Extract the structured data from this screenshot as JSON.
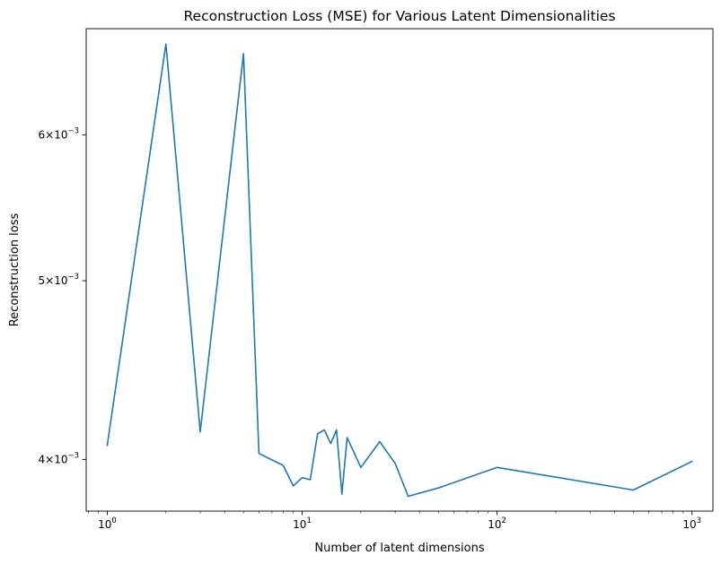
{
  "chart_data": {
    "type": "line",
    "title": "Reconstruction Loss (MSE) for Various Latent Dimensionalities",
    "xlabel": "Number of latent dimensions",
    "ylabel": "Reconstruction loss",
    "xscale": "log",
    "yscale": "log",
    "xlim": [
      0.78,
      1280
    ],
    "ylim": [
      0.00375,
      0.00685
    ],
    "grid": false,
    "x_ticks": [
      {
        "value": 1,
        "base": "10",
        "exp": "0"
      },
      {
        "value": 10,
        "base": "10",
        "exp": "1"
      },
      {
        "value": 100,
        "base": "10",
        "exp": "2"
      },
      {
        "value": 1000,
        "base": "10",
        "exp": "3"
      }
    ],
    "y_ticks": [
      {
        "value": 0.004,
        "mantissa": "4×10",
        "exp": "−3"
      },
      {
        "value": 0.005,
        "mantissa": "5×10",
        "exp": "−3"
      },
      {
        "value": 0.006,
        "mantissa": "6×10",
        "exp": "−3"
      }
    ],
    "series": [
      {
        "color": "#1f77b4",
        "x": [
          1,
          2,
          3,
          5,
          6,
          8,
          9,
          10,
          11,
          12,
          13,
          14,
          15,
          16,
          17,
          20,
          25,
          30,
          35,
          50,
          100,
          500,
          1000
        ],
        "y": [
          0.00407,
          0.00672,
          0.00414,
          0.00664,
          0.00403,
          0.00397,
          0.00387,
          0.00391,
          0.0039,
          0.00413,
          0.00415,
          0.00408,
          0.00415,
          0.00383,
          0.00411,
          0.00396,
          0.00409,
          0.00398,
          0.00382,
          0.00386,
          0.00396,
          0.00385,
          0.00399
        ]
      }
    ]
  }
}
